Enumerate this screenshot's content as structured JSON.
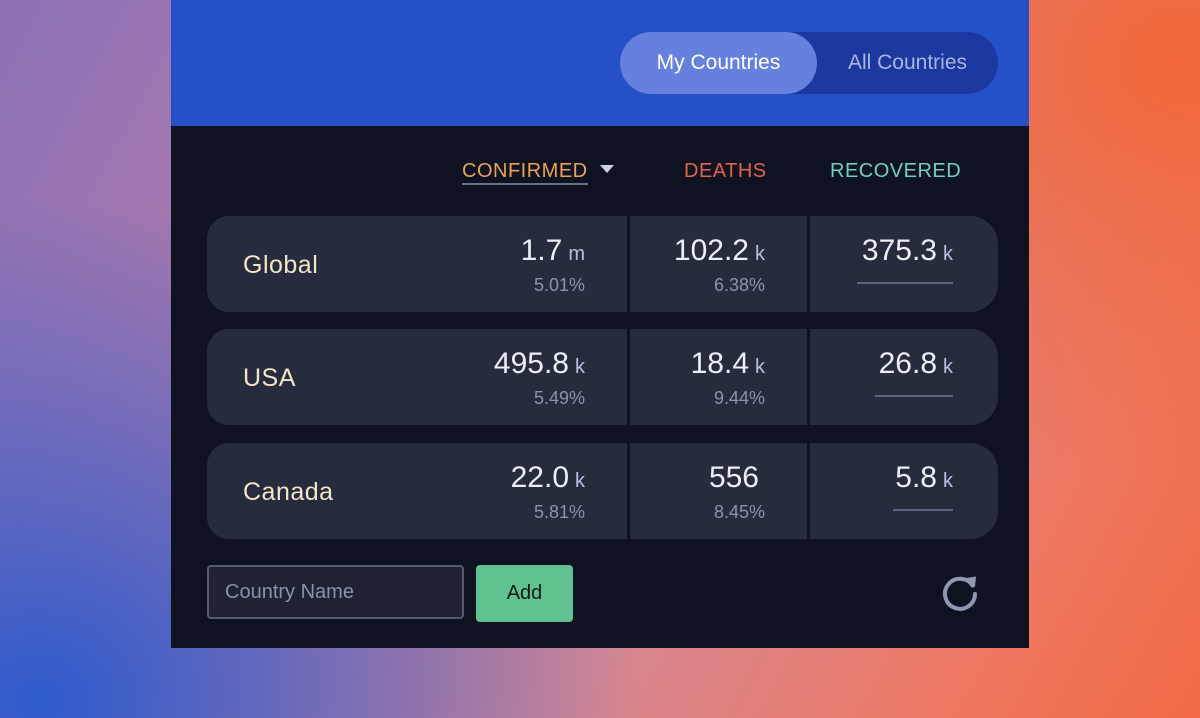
{
  "toggle": {
    "active": "My Countries",
    "inactive": "All Countries"
  },
  "headers": {
    "confirmed": "CONFIRMED",
    "deaths": "DEATHS",
    "recovered": "RECOVERED"
  },
  "rows": [
    {
      "country": "Global",
      "confirmed": {
        "value": "1.7",
        "unit": "m",
        "pct": "5.01%"
      },
      "deaths": {
        "value": "102.2",
        "unit": "k",
        "pct": "6.38%"
      },
      "recovered": {
        "value": "375.3",
        "unit": "k"
      }
    },
    {
      "country": "USA",
      "confirmed": {
        "value": "495.8",
        "unit": "k",
        "pct": "5.49%"
      },
      "deaths": {
        "value": "18.4",
        "unit": "k",
        "pct": "9.44%"
      },
      "recovered": {
        "value": "26.8",
        "unit": "k"
      }
    },
    {
      "country": "Canada",
      "confirmed": {
        "value": "22.0",
        "unit": "k",
        "pct": "5.81%"
      },
      "deaths": {
        "value": "556",
        "unit": "",
        "pct": "8.45%"
      },
      "recovered": {
        "value": "5.8",
        "unit": "k"
      }
    }
  ],
  "form": {
    "placeholder": "Country Name",
    "add_label": "Add"
  },
  "icons": {
    "sort": "chevron-down-icon",
    "refresh": "refresh-icon"
  },
  "colors": {
    "header_bg": "#2650c8",
    "panel_bg": "#0f1321",
    "row_bg": "#272b3e",
    "confirmed": "#e9a25a",
    "deaths": "#e2644d",
    "recovered": "#6fcfc8",
    "add_button": "#62c190"
  }
}
